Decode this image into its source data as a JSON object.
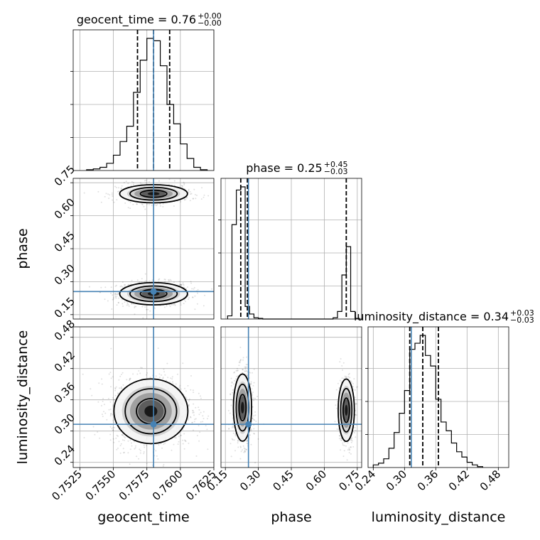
{
  "chart_data": {
    "type": "corner",
    "parameters": [
      "geocent_time",
      "phase",
      "luminosity_distance"
    ],
    "truth": {
      "geocent_time": 0.758,
      "phase": 0.255,
      "luminosity_distance": 0.313
    },
    "truth_color": "#4682b4",
    "grid": true,
    "titles": {
      "geocent_time": {
        "label": "geocent_time = 0.76",
        "plus": "+0.00",
        "minus": "−0.00"
      },
      "phase": {
        "label": "phase = 0.25",
        "plus": "+0.45",
        "minus": "−0.03"
      },
      "luminosity_distance": {
        "label": "luminosity_distance = 0.34",
        "plus": "+0.03",
        "minus": "−0.03"
      }
    },
    "axis_labels": {
      "geocent_time": "geocent_time",
      "phase": "phase",
      "luminosity_distance": "luminosity_distance"
    },
    "ranges": {
      "geocent_time": [
        0.752,
        0.7625
      ],
      "phase": [
        0.13,
        0.77
      ],
      "luminosity_distance": [
        0.23,
        0.5
      ]
    },
    "ticks": {
      "geocent_time": [
        "0.7525",
        "0.7550",
        "0.7575",
        "0.7600",
        "0.7625"
      ],
      "phase": [
        "0.15",
        "0.30",
        "0.45",
        "0.60",
        "0.75"
      ],
      "luminosity_distance": [
        "0.24",
        "0.30",
        "0.36",
        "0.42",
        "0.48"
      ]
    },
    "quantiles": {
      "geocent_time": [
        0.7568,
        0.758,
        0.7592
      ],
      "phase": [
        0.22,
        0.25,
        0.7
      ],
      "luminosity_distance": [
        0.31,
        0.335,
        0.365
      ]
    },
    "histograms": {
      "geocent_time": {
        "edges": [
          0.753,
          0.7535,
          0.754,
          0.7545,
          0.755,
          0.7555,
          0.756,
          0.7565,
          0.757,
          0.7575,
          0.758,
          0.7585,
          0.759,
          0.7595,
          0.76,
          0.7605,
          0.761,
          0.7615,
          0.762
        ],
        "counts": [
          1,
          2,
          4,
          9,
          19,
          36,
          55,
          97,
          137,
          164,
          161,
          130,
          82,
          58,
          33,
          15,
          4,
          1
        ]
      },
      "phase": {
        "edges": [
          0.16,
          0.18,
          0.2,
          0.22,
          0.24,
          0.26,
          0.28,
          0.3,
          0.32,
          0.34,
          0.36,
          0.38,
          0.4,
          0.42,
          0.44,
          0.46,
          0.48,
          0.5,
          0.52,
          0.54,
          0.56,
          0.58,
          0.6,
          0.62,
          0.64,
          0.66,
          0.68,
          0.7,
          0.72,
          0.74,
          0.76
        ],
        "counts": [
          5,
          150,
          205,
          210,
          20,
          8,
          2,
          1,
          0,
          0,
          0,
          0,
          0,
          0,
          0,
          0,
          0,
          0,
          0,
          0,
          0,
          0,
          0,
          0,
          2,
          12,
          70,
          115,
          12,
          1
        ]
      },
      "luminosity_distance": {
        "edges": [
          0.24,
          0.25,
          0.26,
          0.27,
          0.28,
          0.29,
          0.3,
          0.31,
          0.32,
          0.33,
          0.34,
          0.35,
          0.36,
          0.37,
          0.38,
          0.39,
          0.4,
          0.41,
          0.42,
          0.43,
          0.44,
          0.45
        ],
        "counts": [
          3,
          5,
          10,
          22,
          40,
          62,
          88,
          135,
          142,
          151,
          128,
          116,
          78,
          52,
          42,
          28,
          18,
          12,
          6,
          3,
          1
        ]
      }
    },
    "pairs": [
      {
        "x": "geocent_time",
        "y": "phase",
        "modes": [
          {
            "cx": 0.758,
            "cy": 0.245,
            "sx": 0.0011,
            "sy": 0.022,
            "w": 0.62
          },
          {
            "cx": 0.758,
            "cy": 0.7,
            "sx": 0.0011,
            "sy": 0.018,
            "w": 0.38
          }
        ]
      },
      {
        "x": "geocent_time",
        "y": "luminosity_distance",
        "modes": [
          {
            "cx": 0.7578,
            "cy": 0.338,
            "sx": 0.0012,
            "sy": 0.027,
            "w": 1.0
          }
        ]
      },
      {
        "x": "phase",
        "y": "luminosity_distance",
        "modes": [
          {
            "cx": 0.228,
            "cy": 0.345,
            "sx": 0.018,
            "sy": 0.028,
            "w": 0.62
          },
          {
            "cx": 0.7,
            "cy": 0.34,
            "sx": 0.016,
            "sy": 0.026,
            "w": 0.38
          }
        ]
      }
    ]
  }
}
